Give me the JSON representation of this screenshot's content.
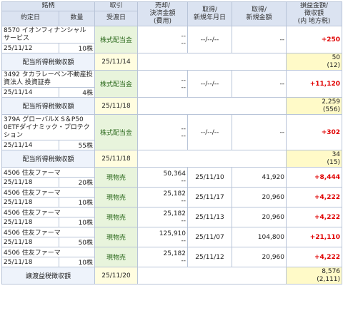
{
  "headers": {
    "brand": "銘柄",
    "trade_date": "約定日",
    "quantity": "数量",
    "trade": "取引",
    "settle_date": "受渡日",
    "sell_amount_l1": "売却/",
    "sell_amount_l2": "決済金額",
    "sell_amount_l3": "(費用)",
    "acq_date_l1": "取得/",
    "acq_date_l2": "新規年月日",
    "acq_amount_l1": "取得/",
    "acq_amount_l2": "新規金額",
    "pl_l1": "損益金額/",
    "pl_l2": "徴収額",
    "pl_l3": "(内 地方税)"
  },
  "dividends": [
    {
      "name_l1": "8570 イオンフィナンシャル",
      "name_l2": "サービス",
      "trade_date": "25/11/12",
      "quantity": "10株",
      "trade": "株式配当金",
      "settle_date": "25/11/14",
      "sell_amount_l1": "--",
      "sell_amount_l2": "--",
      "acq_date": "--/--/--",
      "acq_amount": "--",
      "profit": "+250",
      "tax_label": "配当所得税徴収額",
      "tax_date": "25/11/14",
      "tax": "50",
      "tax_local": "(12)"
    },
    {
      "name_l1": "3492 タカラレーベン不動産投",
      "name_l2": "資法人 投資証券",
      "trade_date": "25/11/14",
      "quantity": "4株",
      "trade": "株式配当金",
      "settle_date": "25/11/18",
      "sell_amount_l1": "--",
      "sell_amount_l2": "--",
      "acq_date": "--/--/--",
      "acq_amount": "--",
      "profit": "+11,120",
      "tax_label": "配当所得税徴収額",
      "tax_date": "25/11/18",
      "tax": "2,259",
      "tax_local": "(556)"
    },
    {
      "name_l1": "379A グローバルX S＆P50",
      "name_l2": "0ETFダイナミック・プロテク",
      "name_l3": "ション",
      "trade_date": "25/11/14",
      "quantity": "55株",
      "trade": "株式配当金",
      "settle_date": "25/11/18",
      "sell_amount_l1": "--",
      "sell_amount_l2": "--",
      "acq_date": "--/--/--",
      "acq_amount": "--",
      "profit": "+302",
      "tax_label": "配当所得税徴収額",
      "tax_date": "25/11/18",
      "tax": "34",
      "tax_local": "(15)"
    }
  ],
  "sales": [
    {
      "name": "4506 住友ファーマ",
      "trade_date": "25/11/18",
      "quantity": "20株",
      "trade": "現物売",
      "settle_date": "25/11/20",
      "sell_amount": "50,364",
      "sell_cost": "--",
      "acq_date": "25/11/10",
      "acq_amount": "41,920",
      "profit": "+8,444"
    },
    {
      "name": "4506 住友ファーマ",
      "trade_date": "25/11/18",
      "quantity": "10株",
      "trade": "現物売",
      "settle_date": "25/11/20",
      "sell_amount": "25,182",
      "sell_cost": "--",
      "acq_date": "25/11/17",
      "acq_amount": "20,960",
      "profit": "+4,222"
    },
    {
      "name": "4506 住友ファーマ",
      "trade_date": "25/11/18",
      "quantity": "10株",
      "trade": "現物売",
      "settle_date": "25/11/20",
      "sell_amount": "25,182",
      "sell_cost": "--",
      "acq_date": "25/11/13",
      "acq_amount": "20,960",
      "profit": "+4,222"
    },
    {
      "name": "4506 住友ファーマ",
      "trade_date": "25/11/18",
      "quantity": "50株",
      "trade": "現物売",
      "settle_date": "25/11/20",
      "sell_amount": "125,910",
      "sell_cost": "--",
      "acq_date": "25/11/07",
      "acq_amount": "104,800",
      "profit": "+21,110"
    },
    {
      "name": "4506 住友ファーマ",
      "trade_date": "25/11/18",
      "quantity": "10株",
      "trade": "現物売",
      "settle_date": "25/11/20",
      "sell_amount": "25,182",
      "sell_cost": "--",
      "acq_date": "25/11/12",
      "acq_amount": "20,960",
      "profit": "+4,222"
    }
  ],
  "transfer_tax": {
    "label": "譲渡益税徴収額",
    "date": "25/11/20",
    "tax": "8,576",
    "tax_local": "(2,111)"
  }
}
